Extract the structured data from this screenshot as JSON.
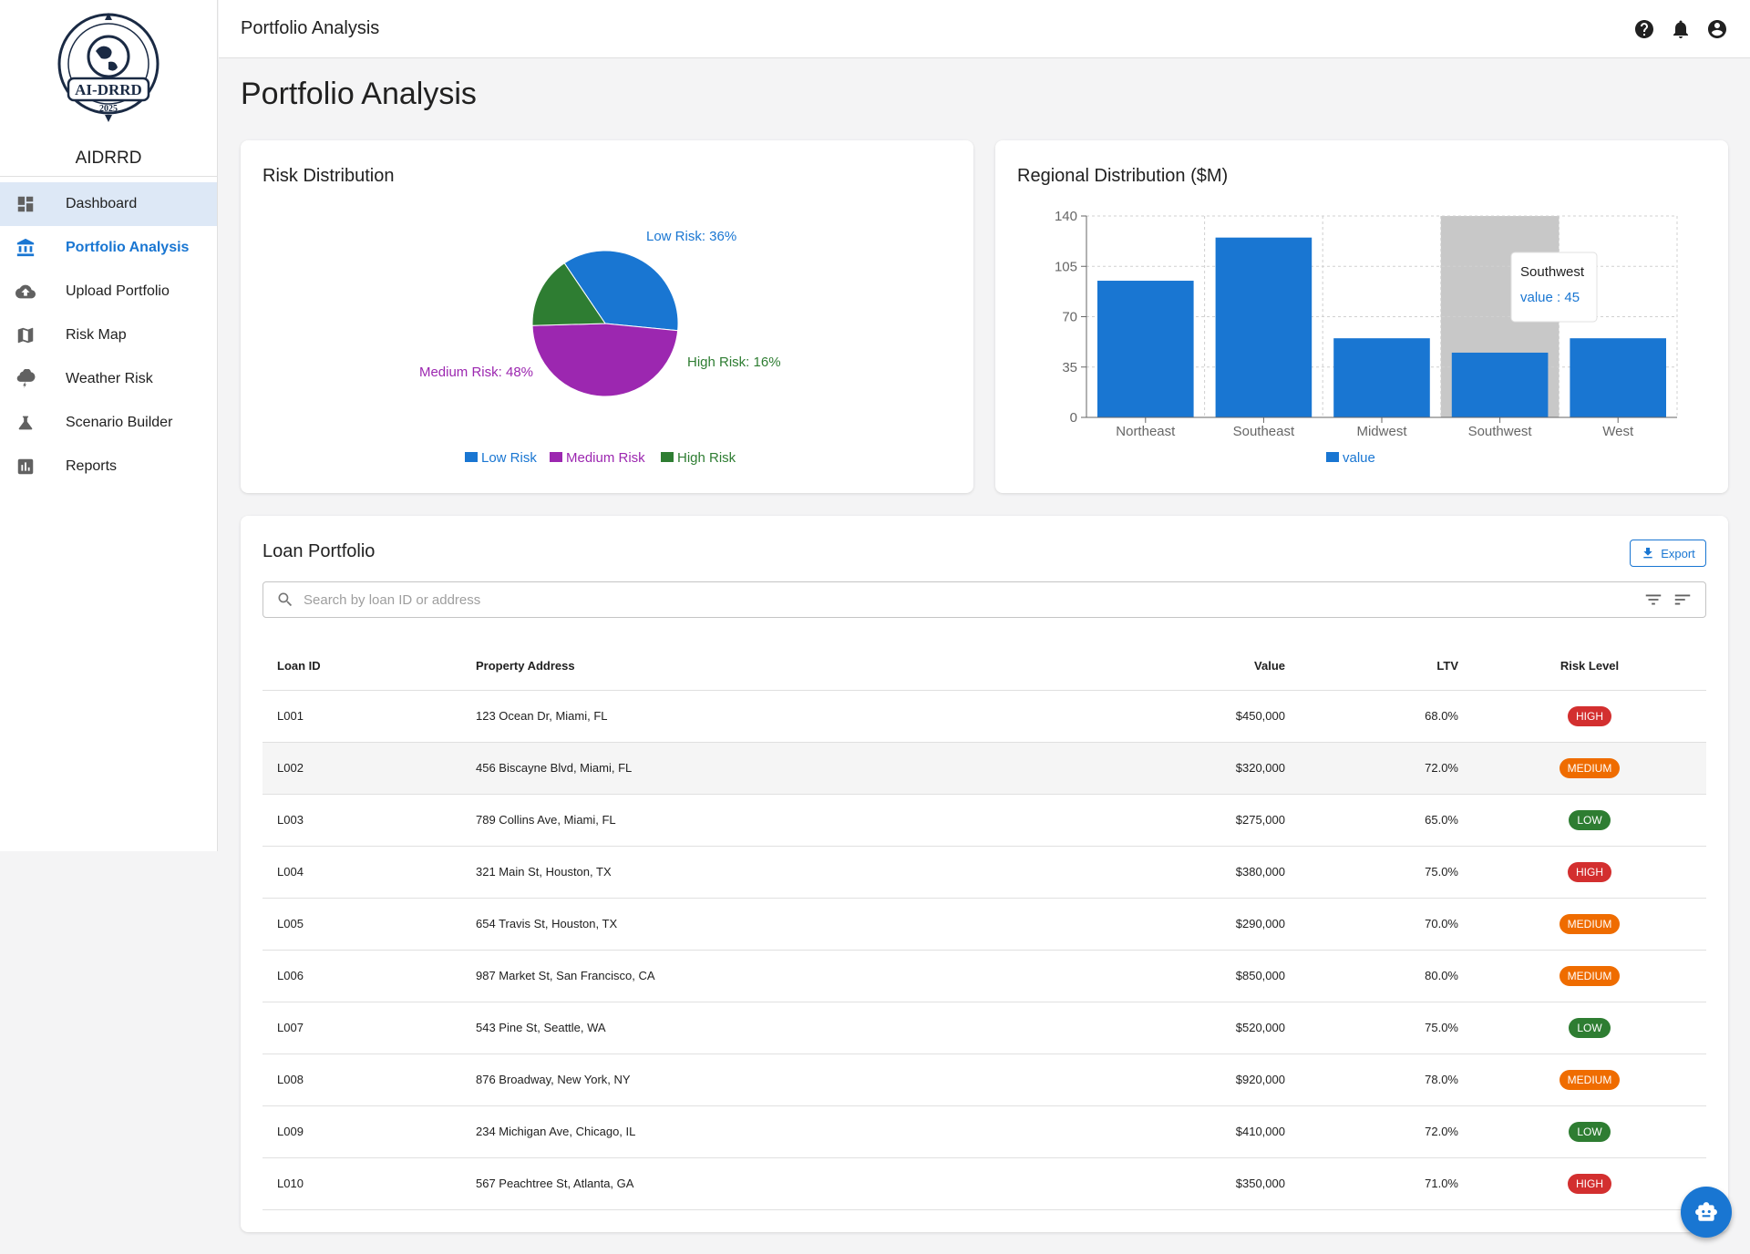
{
  "sidebar": {
    "brand": "AIDRRD",
    "logo": {
      "main_text": "AI-DRRD",
      "year": "2025"
    },
    "items": [
      {
        "label": "Dashboard",
        "icon": "dashboard-icon"
      },
      {
        "label": "Portfolio Analysis",
        "icon": "bank-icon"
      },
      {
        "label": "Upload Portfolio",
        "icon": "cloud-upload-icon"
      },
      {
        "label": "Risk Map",
        "icon": "map-icon"
      },
      {
        "label": "Weather Risk",
        "icon": "thunderstorm-icon"
      },
      {
        "label": "Scenario Builder",
        "icon": "flask-icon"
      },
      {
        "label": "Reports",
        "icon": "bar-chart-icon"
      }
    ]
  },
  "topbar": {
    "title": "Portfolio Analysis",
    "icons": [
      "help-icon",
      "notifications-icon",
      "account-icon"
    ]
  },
  "page": {
    "title": "Portfolio Analysis"
  },
  "risk_card": {
    "title": "Risk Distribution"
  },
  "regional_card": {
    "title": "Regional Distribution ($M)",
    "tooltip": {
      "category": "Southwest",
      "text": "value : 45"
    }
  },
  "chart_data": [
    {
      "type": "pie",
      "title": "Risk Distribution",
      "slices": [
        {
          "name": "Low Risk",
          "value": 36,
          "label": "Low Risk: 36%",
          "color": "#1976d2"
        },
        {
          "name": "Medium Risk",
          "value": 48,
          "label": "Medium Risk: 48%",
          "color": "#9c27b0"
        },
        {
          "name": "High Risk",
          "value": 16,
          "label": "High Risk: 16%",
          "color": "#2e7d32"
        }
      ],
      "legend": [
        "Low Risk",
        "Medium Risk",
        "High Risk"
      ],
      "legend_position": "bottom"
    },
    {
      "type": "bar",
      "title": "Regional Distribution ($M)",
      "categories": [
        "Northeast",
        "Southeast",
        "Midwest",
        "Southwest",
        "West"
      ],
      "series": [
        {
          "name": "value",
          "values": [
            95,
            125,
            55,
            45,
            55
          ],
          "color": "#1976d2"
        }
      ],
      "yticks": [
        "0",
        "35",
        "70",
        "105",
        "140"
      ],
      "ylim": [
        0,
        140
      ],
      "grid": true,
      "legend_position": "bottom",
      "highlighted_category": "Southwest"
    }
  ],
  "loans": {
    "title": "Loan Portfolio",
    "export_label": "Export",
    "search_placeholder": "Search by loan ID or address",
    "columns": [
      "Loan ID",
      "Property Address",
      "Value",
      "LTV",
      "Risk Level"
    ],
    "rows": [
      {
        "id": "L001",
        "address": "123 Ocean Dr, Miami, FL",
        "value": "$450,000",
        "ltv": "68.0%",
        "risk": "HIGH"
      },
      {
        "id": "L002",
        "address": "456 Biscayne Blvd, Miami, FL",
        "value": "$320,000",
        "ltv": "72.0%",
        "risk": "MEDIUM"
      },
      {
        "id": "L003",
        "address": "789 Collins Ave, Miami, FL",
        "value": "$275,000",
        "ltv": "65.0%",
        "risk": "LOW"
      },
      {
        "id": "L004",
        "address": "321 Main St, Houston, TX",
        "value": "$380,000",
        "ltv": "75.0%",
        "risk": "HIGH"
      },
      {
        "id": "L005",
        "address": "654 Travis St, Houston, TX",
        "value": "$290,000",
        "ltv": "70.0%",
        "risk": "MEDIUM"
      },
      {
        "id": "L006",
        "address": "987 Market St, San Francisco, CA",
        "value": "$850,000",
        "ltv": "80.0%",
        "risk": "MEDIUM"
      },
      {
        "id": "L007",
        "address": "543 Pine St, Seattle, WA",
        "value": "$520,000",
        "ltv": "75.0%",
        "risk": "LOW"
      },
      {
        "id": "L008",
        "address": "876 Broadway, New York, NY",
        "value": "$920,000",
        "ltv": "78.0%",
        "risk": "MEDIUM"
      },
      {
        "id": "L009",
        "address": "234 Michigan Ave, Chicago, IL",
        "value": "$410,000",
        "ltv": "72.0%",
        "risk": "LOW"
      },
      {
        "id": "L010",
        "address": "567 Peachtree St, Atlanta, GA",
        "value": "$350,000",
        "ltv": "71.0%",
        "risk": "HIGH"
      }
    ]
  },
  "colors": {
    "primary": "#1976d2",
    "high": "#d32f2f",
    "medium": "#ef6c00",
    "low": "#2e7d32"
  }
}
